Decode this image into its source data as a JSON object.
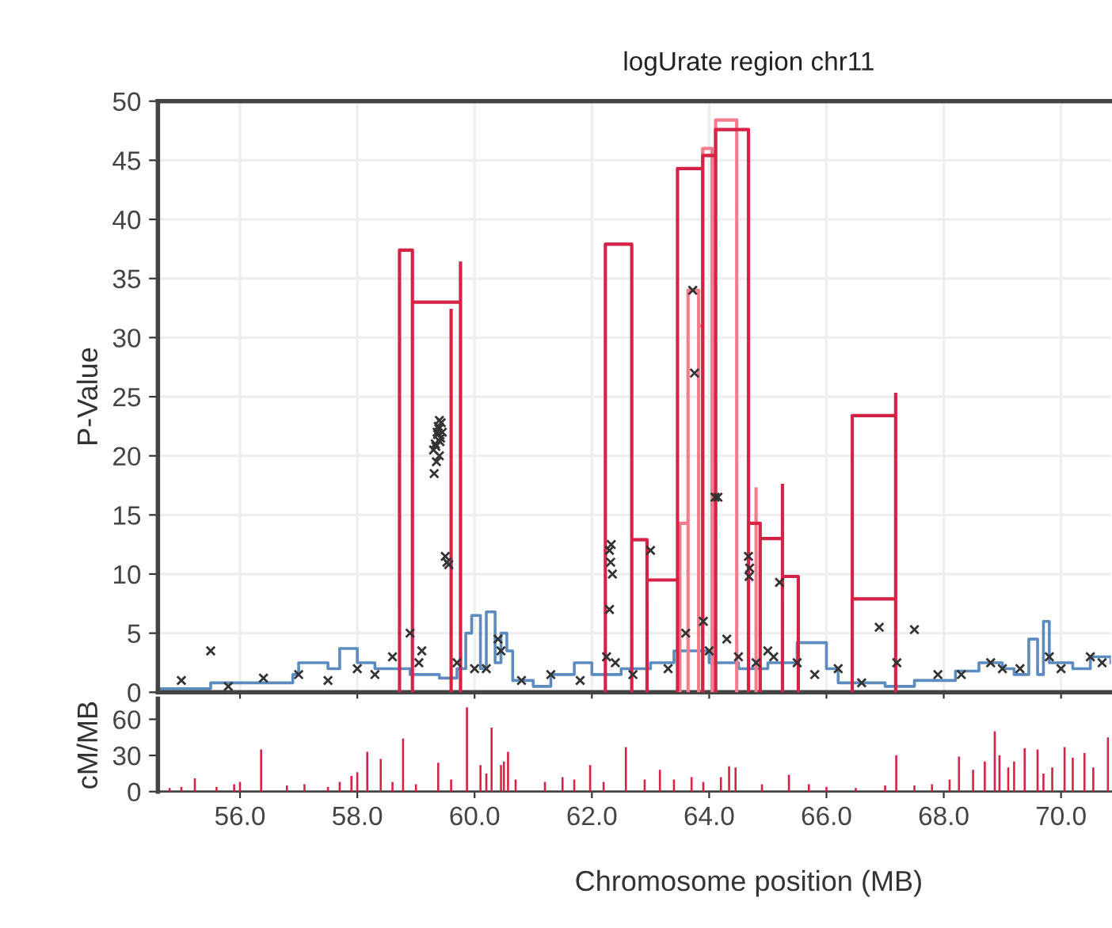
{
  "chart_data": [
    {
      "type": "line",
      "title": "logUrate region chr11",
      "ylabel": "P-Value",
      "xlim": [
        54.6,
        70.85
      ],
      "ylim": [
        0,
        50
      ],
      "yticks": [
        0,
        5,
        10,
        15,
        20,
        25,
        30,
        35,
        40,
        45,
        50
      ],
      "xticks": [
        {
          "value": 56,
          "label": null
        },
        {
          "value": 58,
          "label": null
        },
        {
          "value": 60,
          "label": null
        },
        {
          "value": 62,
          "label": null
        },
        {
          "value": 64,
          "label": null
        },
        {
          "value": 66,
          "label": null
        },
        {
          "value": 68,
          "label": null
        },
        {
          "value": 70,
          "label": null
        }
      ],
      "tick_labels": "y",
      "grid": true,
      "legend": false,
      "series": [
        {
          "type": "step",
          "color": "#5b8bbf",
          "x": [
            54.6,
            55.5,
            56.9,
            57.0,
            57.5,
            57.7,
            58.0,
            58.3,
            58.9,
            59.4,
            59.7,
            59.85,
            59.95,
            60.1,
            60.2,
            60.35,
            60.45,
            60.55,
            60.65,
            61.0,
            61.3,
            61.7,
            62.0,
            62.2,
            62.5,
            63.0,
            63.4,
            64.0,
            64.5,
            65.0,
            65.5,
            66.0,
            66.2,
            67.0,
            67.5,
            68.2,
            68.6,
            69.0,
            69.2,
            69.45,
            69.6,
            69.7,
            69.8,
            70.2,
            70.5,
            70.85
          ],
          "values": [
            0.3,
            0.8,
            1.5,
            2.5,
            2.0,
            3.7,
            2.5,
            2.0,
            1.5,
            1.2,
            2.0,
            5.0,
            6.5,
            2.0,
            6.8,
            2.5,
            5.0,
            3.5,
            1.0,
            0.5,
            1.5,
            2.5,
            1.5,
            1.5,
            2.0,
            2.5,
            3.5,
            2.5,
            2.0,
            2.5,
            4.2,
            2.0,
            0.8,
            0.5,
            1.0,
            1.8,
            2.5,
            2.0,
            1.5,
            4.5,
            1.5,
            6.0,
            2.5,
            2.0,
            3.0,
            2.5
          ]
        },
        {
          "type": "scatter",
          "marker": "cross",
          "color": "#333333",
          "x": [
            59.3,
            59.33,
            59.36,
            59.38,
            59.4,
            59.42,
            59.45,
            59.35,
            59.4,
            59.31,
            59.37,
            59.43,
            59.39,
            59.34,
            59.41,
            59.5,
            59.53,
            59.56,
            55.5,
            62.3,
            62.32,
            62.35,
            62.3,
            62.33,
            63.0,
            63.72,
            63.75,
            64.1,
            64.15,
            64.67,
            64.69,
            64.68,
            65.2,
            66.9,
            67.5,
            58.6,
            58.9,
            59.05,
            59.1,
            60.0,
            60.4,
            60.45,
            62.25,
            62.4,
            63.6,
            63.9,
            64.0,
            64.3,
            64.5,
            65.0,
            65.1,
            65.5,
            66.2,
            67.2,
            67.9,
            68.8,
            69.3,
            69.8,
            70.5,
            55.0,
            55.8,
            56.4,
            57.0,
            57.5,
            58.0,
            58.3,
            59.7,
            60.2,
            60.8,
            61.3,
            61.8,
            62.7,
            63.3,
            64.8,
            65.8,
            66.6,
            68.3,
            69.0,
            70.0,
            70.7
          ],
          "values": [
            20.5,
            21.0,
            22.0,
            22.5,
            23.0,
            21.5,
            22.0,
            19.5,
            20.0,
            18.5,
            21.8,
            22.8,
            22.3,
            20.8,
            21.2,
            11.5,
            11.0,
            10.8,
            3.5,
            12.0,
            11.0,
            10.0,
            7.0,
            12.5,
            12.0,
            34.0,
            27.0,
            16.5,
            16.5,
            11.5,
            10.5,
            9.8,
            9.3,
            5.5,
            5.3,
            3.0,
            5.0,
            2.5,
            3.5,
            2.0,
            4.5,
            3.5,
            3.0,
            2.5,
            5.0,
            6.0,
            3.5,
            4.5,
            3.0,
            3.5,
            3.0,
            2.5,
            2.0,
            2.5,
            1.5,
            2.5,
            2.0,
            3.0,
            3.0,
            1.0,
            0.5,
            1.2,
            1.5,
            1.0,
            2.0,
            1.5,
            2.5,
            2.0,
            1.0,
            1.5,
            1.0,
            1.5,
            2.0,
            2.5,
            1.5,
            0.8,
            1.5,
            2.0,
            2.0,
            2.5
          ]
        },
        {
          "type": "line",
          "color": "#f47c8c",
          "x": [
            63.5,
            63.5,
            63.64,
            63.64,
            null,
            63.64,
            63.64,
            63.82,
            63.82,
            null,
            63.82,
            63.82,
            63.89,
            63.89,
            null,
            63.89,
            63.89,
            64.05,
            64.05,
            null,
            64.11,
            64.11,
            64.47,
            64.47,
            null,
            64.8,
            64.8,
            null
          ],
          "values": [
            0,
            14.3,
            14.3,
            0,
            null,
            0,
            34.0,
            34.0,
            0,
            null,
            0,
            31.0,
            31.0,
            0,
            null,
            0,
            46.0,
            46.0,
            0,
            null,
            0,
            48.4,
            48.4,
            0,
            null,
            0,
            17.2,
            null
          ]
        },
        {
          "type": "line",
          "color": "#d62246",
          "x": [
            58.72,
            58.72,
            58.94,
            58.94,
            null,
            58.94,
            58.94,
            59.76,
            59.76,
            null,
            59.6,
            59.6,
            null,
            59.76,
            59.76,
            null,
            62.23,
            62.23,
            62.68,
            62.68,
            null,
            62.68,
            62.68,
            62.94,
            62.94,
            null,
            62.94,
            62.94,
            63.46,
            63.46,
            null,
            63.46,
            63.46,
            63.89,
            63.89,
            null,
            63.89,
            63.89,
            64.11,
            64.11,
            null,
            64.11,
            64.11,
            64.67,
            64.67,
            null,
            64.67,
            64.67,
            64.87,
            64.87,
            null,
            64.87,
            64.87,
            65.25,
            65.25,
            null,
            65.25,
            65.25,
            65.52,
            65.52,
            null,
            65.25,
            65.25,
            null,
            66.44,
            66.44,
            67.18,
            67.18,
            null,
            66.44,
            66.44,
            67.18,
            67.18,
            null,
            67.18,
            67.18,
            null
          ],
          "values": [
            0,
            37.4,
            37.4,
            0,
            null,
            0,
            33.0,
            33.0,
            0,
            null,
            0,
            32.3,
            null,
            0,
            36.3,
            null,
            0,
            37.9,
            37.9,
            0,
            null,
            0,
            12.9,
            12.9,
            0,
            null,
            0,
            9.5,
            9.5,
            0,
            null,
            0,
            44.3,
            44.3,
            0,
            null,
            0,
            45.4,
            45.4,
            0,
            null,
            0,
            47.6,
            47.6,
            0,
            null,
            0,
            14.3,
            14.3,
            0,
            null,
            0,
            13.0,
            13.0,
            0,
            null,
            0,
            9.8,
            9.8,
            0,
            null,
            0,
            17.5,
            null,
            0,
            23.4,
            23.4,
            0,
            null,
            0,
            7.9,
            7.9,
            0,
            null,
            0,
            25.2,
            null
          ]
        }
      ]
    },
    {
      "type": "bar",
      "ylabel": "cM/MB",
      "xlabel": "Chromosome position (MB)",
      "xlim": [
        54.6,
        70.85
      ],
      "ylim": [
        0,
        77
      ],
      "yticks": [
        0,
        30,
        60
      ],
      "xticks": [
        {
          "value": 56,
          "label": "56.0"
        },
        {
          "value": 58,
          "label": "58.0"
        },
        {
          "value": 60,
          "label": "60.0"
        },
        {
          "value": 62,
          "label": "62.0"
        },
        {
          "value": 64,
          "label": "64.0"
        },
        {
          "value": 66,
          "label": "66.0"
        },
        {
          "value": 68,
          "label": "68.0"
        },
        {
          "value": 70,
          "label": "70.0"
        }
      ],
      "grid": false,
      "color": "#d62246",
      "x": [
        54.8,
        55.0,
        55.23,
        55.6,
        55.9,
        56.0,
        56.36,
        56.8,
        57.1,
        57.5,
        57.7,
        57.9,
        58.0,
        58.17,
        58.4,
        58.6,
        58.78,
        59.0,
        59.38,
        59.6,
        59.87,
        60.1,
        60.2,
        60.29,
        60.45,
        60.5,
        60.57,
        60.7,
        61.2,
        61.5,
        61.7,
        61.97,
        62.2,
        62.58,
        62.9,
        63.16,
        63.4,
        63.7,
        63.9,
        64.2,
        64.34,
        64.45,
        64.9,
        65.36,
        65.7,
        66.0,
        66.5,
        67.0,
        67.19,
        67.5,
        67.8,
        68.1,
        68.26,
        68.5,
        68.7,
        68.87,
        68.95,
        69.1,
        69.2,
        69.38,
        69.6,
        69.7,
        69.85,
        70.06,
        70.2,
        70.4,
        70.55,
        70.8
      ],
      "values": [
        3,
        4,
        11,
        4,
        6,
        8,
        35,
        5,
        6,
        4,
        8,
        13,
        16,
        33,
        27,
        8,
        44,
        6,
        24,
        10,
        70,
        22,
        15,
        53,
        22,
        25,
        33,
        10,
        8,
        12,
        10,
        22,
        8,
        37,
        10,
        18,
        10,
        12,
        8,
        12,
        21,
        20,
        6,
        14,
        6,
        4,
        3,
        5,
        30,
        5,
        6,
        10,
        29,
        18,
        25,
        50,
        30,
        20,
        25,
        36,
        35,
        15,
        20,
        37,
        28,
        32,
        20,
        45
      ]
    }
  ]
}
